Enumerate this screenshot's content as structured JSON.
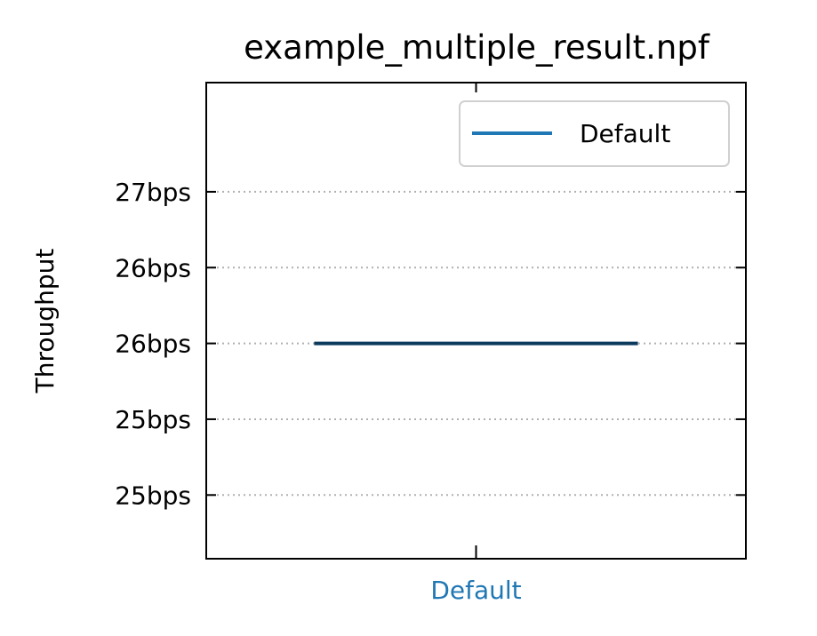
{
  "chart_data": {
    "type": "line",
    "title": "example_multiple_result.npf",
    "xlabel": "",
    "ylabel": "Throughput",
    "categories": [
      "Default"
    ],
    "category_color": "#1f77b4",
    "yticks": [
      {
        "value": 25.0,
        "label": "25bps"
      },
      {
        "value": 25.5,
        "label": "25bps"
      },
      {
        "value": 26.0,
        "label": "26bps"
      },
      {
        "value": 26.5,
        "label": "26bps"
      },
      {
        "value": 27.0,
        "label": "27bps"
      }
    ],
    "ylim": [
      24.58,
      27.72
    ],
    "grid": "horizontal, dotted",
    "legend_position": "upper right",
    "series": [
      {
        "name": "Default",
        "color": "#1f77b4",
        "median_color": "#0b3a5c",
        "x": [
          "Default"
        ],
        "values": [
          26.0
        ]
      }
    ]
  }
}
